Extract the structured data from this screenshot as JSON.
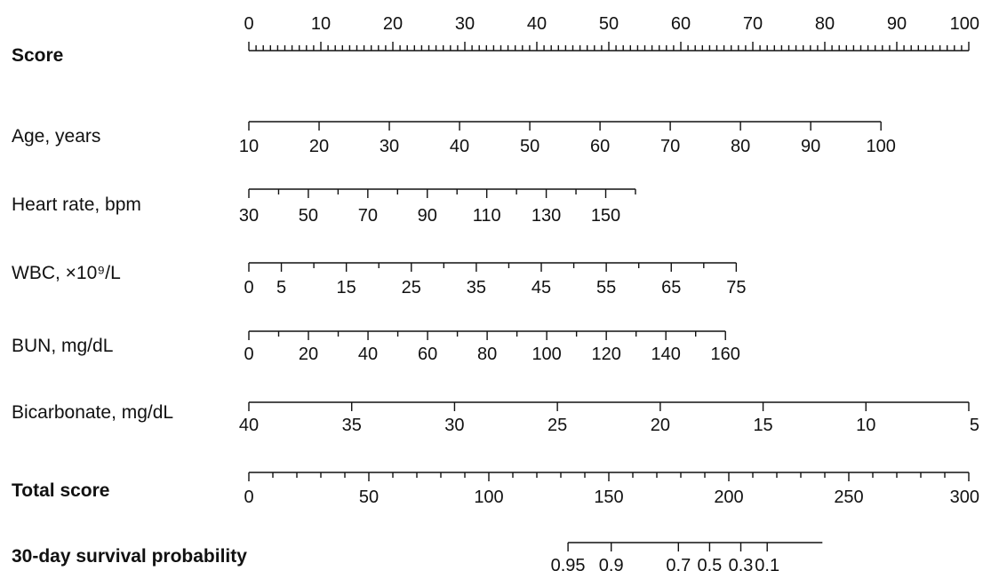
{
  "chart_data": {
    "type": "nomogram",
    "title": "",
    "axes": [
      {
        "name": "Score",
        "bold": true,
        "min": 0,
        "max": 100,
        "tick_labels": [
          "0",
          "10",
          "20",
          "30",
          "40",
          "50",
          "60",
          "70",
          "80",
          "90",
          "100"
        ],
        "label_position": "above",
        "minor_step": 1
      },
      {
        "name": "Age, years",
        "bold": false,
        "min": 10,
        "max": 100,
        "tick_labels": [
          "10",
          "20",
          "30",
          "40",
          "50",
          "60",
          "70",
          "80",
          "90",
          "100"
        ],
        "label_position": "below",
        "minor_step": 0
      },
      {
        "name": "Heart rate, bpm",
        "bold": false,
        "min": 30,
        "max": 160,
        "tick_labels": [
          "30",
          "50",
          "70",
          "90",
          "110",
          "130",
          "150"
        ],
        "label_position": "below",
        "minor_step": 10
      },
      {
        "name": "WBC, ×10⁹/L",
        "bold": false,
        "min": 0,
        "max": 75,
        "tick_labels": [
          "0",
          "5",
          "15",
          "25",
          "35",
          "45",
          "55",
          "65",
          "75"
        ],
        "label_position": "below",
        "minor_step": 5
      },
      {
        "name": "BUN, mg/dL",
        "bold": false,
        "min": 0,
        "max": 160,
        "tick_labels": [
          "0",
          "20",
          "40",
          "60",
          "80",
          "100",
          "120",
          "140",
          "160"
        ],
        "label_position": "below",
        "minor_step": 10
      },
      {
        "name": "Bicarbonate, mg/dL",
        "bold": false,
        "min": 40,
        "max": 5,
        "tick_labels": [
          "40",
          "35",
          "30",
          "25",
          "20",
          "15",
          "10",
          "5"
        ],
        "label_position": "below",
        "minor_step": 0
      },
      {
        "name": "Total score",
        "bold": true,
        "min": 0,
        "max": 300,
        "tick_labels": [
          "0",
          "50",
          "100",
          "150",
          "200",
          "250",
          "300"
        ],
        "label_position": "below",
        "minor_step": 10
      },
      {
        "name": "30-day survival probability",
        "bold": true,
        "min": 133,
        "max": 239,
        "tick_labels": [
          "0.95",
          "0.9",
          "0.7",
          "0.5",
          "0.3",
          "0.1"
        ],
        "tick_scores": [
          133,
          151,
          179,
          192,
          205,
          216
        ],
        "label_position": "below",
        "minor_step": 0
      }
    ]
  }
}
